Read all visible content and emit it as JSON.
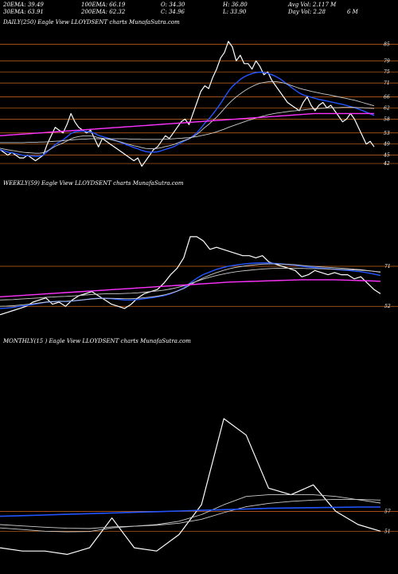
{
  "stats": {
    "row1": {
      "ema20": "20EMA: 39.49",
      "ema100": "100EMA: 66.19",
      "open": "O: 34.30",
      "high": "H: 36.80",
      "avgvol": "Avg Vol: 2.117 M"
    },
    "row2": {
      "ema30": "30EMA: 63.91",
      "ema200": "200EMA: 62.32",
      "close": "C: 34.96",
      "low": "L: 33.90",
      "dayvol": "Day Vol: 2.28",
      "extra": "6  M"
    }
  },
  "colors": {
    "background": "#000000",
    "price": "#ffffff",
    "ema_blue": "#2255ff",
    "ema_magenta": "#ff33ff",
    "ema_gray": "#cccccc",
    "levels": "#d2691e"
  },
  "chart_data": [
    {
      "type": "line",
      "label": "DAILY(250) Eagle  View  LLOYDSENT charts MunafaSutra.com",
      "ylim": [
        40,
        90
      ],
      "y_ticks": [
        85,
        79,
        75,
        71,
        66,
        62,
        58,
        53,
        49,
        45,
        42
      ],
      "level_lines": [
        85,
        79,
        75,
        71,
        66,
        62,
        58,
        53,
        49,
        45,
        42
      ],
      "series": [
        {
          "role": "price",
          "color": "#ffffff",
          "width": 1.2,
          "values": [
            47,
            46,
            45,
            46,
            45,
            44,
            44,
            45,
            44,
            43,
            44,
            45,
            49,
            52,
            55,
            54,
            53,
            56,
            60,
            57,
            55,
            54,
            53,
            54,
            51,
            48,
            51,
            50,
            49,
            48,
            47,
            46,
            45,
            44,
            43,
            44,
            41,
            43,
            45,
            47,
            48,
            50,
            52,
            51,
            53,
            55,
            57,
            58,
            56,
            60,
            64,
            68,
            70,
            69,
            73,
            76,
            80,
            82,
            86,
            84,
            79,
            81,
            78,
            78,
            76,
            79,
            77,
            74,
            75,
            72,
            70,
            68,
            66,
            64,
            63,
            62,
            61,
            64,
            66,
            63,
            61,
            63,
            64,
            62,
            63,
            61,
            59,
            57,
            58,
            60,
            58,
            55,
            52,
            49,
            50,
            48
          ]
        },
        {
          "role": "ema20",
          "color": "#2255ff",
          "width": 1.4,
          "values": [
            47,
            46.6,
            46.1,
            45.9,
            45.6,
            45.2,
            44.9,
            44.8,
            44.7,
            44.6,
            44.6,
            45.1,
            46.2,
            47.5,
            48.8,
            49.7,
            50.5,
            51.6,
            52.8,
            53.4,
            53.6,
            53.7,
            53.5,
            53.3,
            52.9,
            52.1,
            51.7,
            51.3,
            50.9,
            50.4,
            49.9,
            49.4,
            48.8,
            48.3,
            47.7,
            47.3,
            46.7,
            46.3,
            46.1,
            46.1,
            46.2,
            46.6,
            47.1,
            47.5,
            48.0,
            48.7,
            49.5,
            50.3,
            50.9,
            51.9,
            53.1,
            54.7,
            56.5,
            58.0,
            59.7,
            61.6,
            63.6,
            65.8,
            68.0,
            69.8,
            71.0,
            72.3,
            73.2,
            73.9,
            74.4,
            74.8,
            74.9,
            74.8,
            74.5,
            74.0,
            73.4,
            72.6,
            71.6,
            70.5,
            69.4,
            68.4,
            67.4,
            66.7,
            66.3,
            65.9,
            65.5,
            65.1,
            64.8,
            64.5,
            64.2,
            63.9,
            63.6,
            63.3,
            62.9,
            62.5,
            62.1,
            61.6,
            61.1,
            60.5,
            59.9,
            59.3
          ]
        },
        {
          "role": "ema30",
          "color": "#cccccc",
          "width": 0.9,
          "values": [
            47.5,
            47.2,
            46.9,
            46.7,
            46.5,
            46.2,
            46.0,
            45.9,
            45.8,
            45.7,
            45.7,
            45.9,
            46.5,
            47.3,
            48.2,
            48.8,
            49.4,
            50.1,
            50.9,
            51.4,
            51.7,
            51.9,
            51.9,
            51.9,
            51.7,
            51.3,
            51.1,
            50.9,
            50.6,
            50.3,
            50.0,
            49.6,
            49.2,
            48.8,
            48.4,
            48.1,
            47.7,
            47.4,
            47.3,
            47.3,
            47.4,
            47.7,
            48.1,
            48.4,
            48.8,
            49.3,
            49.9,
            50.4,
            50.9,
            51.6,
            52.5,
            53.7,
            55.0,
            56.1,
            57.4,
            58.7,
            60.2,
            61.8,
            63.4,
            64.8,
            66.0,
            67.1,
            68.1,
            69.0,
            69.7,
            70.4,
            70.9,
            71.2,
            71.4,
            71.5,
            71.5,
            71.3,
            71.0,
            70.6,
            70.1,
            69.6,
            69.1,
            68.7,
            68.4,
            68.0,
            67.7,
            67.4,
            67.1,
            66.9,
            66.6,
            66.3,
            66.0,
            65.7,
            65.4,
            65.1,
            64.8,
            64.4,
            64.0,
            63.6,
            63.2,
            62.8
          ]
        },
        {
          "role": "ema100",
          "color": "#cccccc",
          "width": 0.9,
          "values": [
            49.5,
            49.5,
            49.5,
            49.5,
            49.5,
            49.5,
            49.5,
            49.6,
            49.6,
            49.6,
            49.7,
            49.7,
            49.8,
            49.9,
            50.0,
            50.1,
            50.2,
            50.4,
            50.5,
            50.6,
            50.7,
            50.8,
            50.8,
            50.9,
            50.9,
            50.9,
            50.9,
            50.9,
            50.9,
            50.9,
            50.9,
            50.9,
            50.9,
            50.8,
            50.8,
            50.8,
            50.7,
            50.7,
            50.7,
            50.7,
            50.7,
            50.7,
            50.8,
            50.8,
            50.9,
            51.0,
            51.1,
            51.2,
            51.3,
            51.5,
            51.7,
            52.0,
            52.3,
            52.6,
            53.0,
            53.4,
            53.9,
            54.4,
            55.0,
            55.5,
            56.0,
            56.5,
            57.0,
            57.5,
            57.9,
            58.4,
            58.8,
            59.1,
            59.5,
            59.8,
            60.1,
            60.3,
            60.5,
            60.7,
            60.9,
            61.0,
            61.2,
            61.3,
            61.5,
            61.6,
            61.7,
            61.8,
            61.9,
            62.0,
            62.1,
            62.1,
            62.1,
            62.2,
            62.2,
            62.2,
            62.2,
            62.1,
            62.1,
            62.0,
            61.9,
            61.8
          ]
        },
        {
          "role": "ema200",
          "color": "#ff33ff",
          "width": 1.4,
          "values": [
            52.0,
            52.1,
            52.2,
            52.3,
            52.4,
            52.5,
            52.6,
            52.7,
            52.8,
            52.9,
            53.0,
            53.1,
            53.2,
            53.3,
            53.4,
            53.5,
            53.6,
            53.7,
            53.8,
            53.9,
            54.0,
            54.1,
            54.2,
            54.3,
            54.4,
            54.5,
            54.6,
            54.7,
            54.8,
            54.9,
            55.0,
            55.1,
            55.2,
            55.3,
            55.4,
            55.5,
            55.6,
            55.7,
            55.8,
            55.9,
            56.0,
            56.1,
            56.2,
            56.3,
            56.4,
            56.5,
            56.6,
            56.7,
            56.8,
            56.9,
            57.0,
            57.1,
            57.2,
            57.3,
            57.4,
            57.5,
            57.6,
            57.7,
            57.8,
            57.9,
            58.0,
            58.1,
            58.2,
            58.3,
            58.4,
            58.5,
            58.6,
            58.7,
            58.8,
            58.9,
            59.0,
            59.1,
            59.2,
            59.3,
            59.4,
            59.5,
            59.6,
            59.7,
            59.8,
            59.9,
            60.0,
            60.0,
            60.0,
            60.0,
            60.0,
            60.0,
            60.0,
            60.0,
            60.0,
            60.0,
            60.0,
            60.0,
            60.0,
            60.0,
            60.0,
            60.0
          ]
        }
      ]
    },
    {
      "type": "line",
      "label": "WEEKLY(59) Eagle  View  LLOYDSENT charts MunafaSutra.com",
      "ylim": [
        40,
        105
      ],
      "y_ticks": [
        71,
        52
      ],
      "level_lines": [
        71,
        52
      ],
      "series": [
        {
          "role": "price",
          "color": "#ffffff",
          "width": 1.2,
          "values": [
            48,
            49,
            50,
            51,
            52,
            54,
            55,
            56,
            53,
            54,
            52,
            55,
            57,
            58,
            59,
            57,
            55,
            53,
            52,
            51,
            53,
            56,
            58,
            59,
            60,
            63,
            67,
            70,
            75,
            85,
            85,
            83,
            79,
            80,
            79,
            78,
            77,
            76,
            76,
            75,
            76,
            73,
            72,
            71,
            70,
            69,
            66,
            67,
            69,
            68,
            67,
            68,
            67,
            67,
            65,
            66,
            63,
            60,
            58
          ]
        },
        {
          "role": "ema_blue",
          "color": "#2255ff",
          "width": 1.4,
          "values": [
            51,
            51.2,
            51.5,
            52,
            52.4,
            52.9,
            53.4,
            54,
            54.2,
            54.4,
            54.3,
            54.5,
            54.8,
            55.2,
            55.6,
            55.8,
            55.8,
            55.6,
            55.3,
            55,
            55,
            55.2,
            55.6,
            56,
            56.5,
            57.1,
            58,
            59.2,
            60.7,
            63.1,
            65.3,
            67.1,
            68.3,
            69.5,
            70.4,
            71.1,
            71.6,
            72,
            72.3,
            72.5,
            72.6,
            72.5,
            72.3,
            72.1,
            71.8,
            71.5,
            71,
            70.6,
            70.4,
            70.1,
            69.8,
            69.6,
            69.3,
            69.1,
            68.7,
            68.4,
            67.9,
            67.3,
            66.6
          ]
        },
        {
          "role": "ema_gray1",
          "color": "#cccccc",
          "width": 0.9,
          "values": [
            52,
            52.1,
            52.3,
            52.6,
            52.9,
            53.2,
            53.6,
            54,
            54.2,
            54.4,
            54.4,
            54.6,
            54.9,
            55.2,
            55.5,
            55.7,
            55.8,
            55.8,
            55.7,
            55.6,
            55.6,
            55.8,
            56.1,
            56.4,
            56.8,
            57.4,
            58.2,
            59.2,
            60.4,
            62.2,
            64,
            65.5,
            66.8,
            68,
            69,
            69.8,
            70.5,
            71,
            71.4,
            71.7,
            72,
            72.1,
            72.1,
            72,
            71.9,
            71.7,
            71.4,
            71.1,
            70.9,
            70.7,
            70.5,
            70.3,
            70.1,
            69.9,
            69.6,
            69.4,
            69,
            68.6,
            68.1
          ]
        },
        {
          "role": "ema_gray2",
          "color": "#cccccc",
          "width": 0.9,
          "values": [
            55,
            55.1,
            55.2,
            55.4,
            55.6,
            55.8,
            56,
            56.3,
            56.4,
            56.6,
            56.7,
            56.9,
            57.1,
            57.4,
            57.6,
            57.8,
            57.9,
            58,
            58,
            58.1,
            58.2,
            58.4,
            58.7,
            59,
            59.3,
            59.7,
            60.2,
            60.9,
            61.7,
            62.8,
            63.9,
            64.9,
            65.8,
            66.6,
            67.3,
            67.9,
            68.4,
            68.8,
            69.1,
            69.4,
            69.7,
            69.9,
            70,
            70.1,
            70.1,
            70.1,
            70,
            69.9,
            69.9,
            69.8,
            69.7,
            69.6,
            69.5,
            69.4,
            69.3,
            69.1,
            68.9,
            68.6,
            68.3
          ]
        },
        {
          "role": "ema_magenta",
          "color": "#ff33ff",
          "width": 1.4,
          "values": [
            56.5,
            56.7,
            56.9,
            57.1,
            57.3,
            57.5,
            57.7,
            57.9,
            58.1,
            58.3,
            58.5,
            58.7,
            58.9,
            59.1,
            59.3,
            59.5,
            59.7,
            59.9,
            60.1,
            60.3,
            60.5,
            60.7,
            60.9,
            61.1,
            61.3,
            61.5,
            61.7,
            61.9,
            62.1,
            62.3,
            62.5,
            62.7,
            62.9,
            63.1,
            63.3,
            63.5,
            63.6,
            63.7,
            63.8,
            63.9,
            64,
            64.1,
            64.2,
            64.3,
            64.4,
            64.5,
            64.6,
            64.6,
            64.6,
            64.6,
            64.6,
            64.6,
            64.5,
            64.4,
            64.3,
            64.2,
            64.1,
            64,
            63.9
          ]
        }
      ]
    },
    {
      "type": "line",
      "label": "MONTHLY(15                    ) Eagle  View  LLOYDSENT charts MunafaSutra.com",
      "ylim": [
        40,
        105
      ],
      "y_ticks": [
        57,
        51
      ],
      "level_lines": [
        57,
        51
      ],
      "series": [
        {
          "role": "price",
          "color": "#ffffff",
          "width": 1.2,
          "values": [
            46,
            45,
            45,
            44,
            46,
            55,
            46,
            45,
            50,
            59,
            85,
            80,
            64,
            62,
            65,
            57,
            53,
            51
          ]
        },
        {
          "role": "ema_gray1",
          "color": "#cccccc",
          "width": 0.9,
          "values": [
            52,
            51.5,
            51,
            50.8,
            50.9,
            52,
            52.5,
            53,
            54,
            56,
            59,
            61.5,
            62,
            62,
            62,
            61.5,
            60.5,
            59.5
          ]
        },
        {
          "role": "ema_gray2",
          "color": "#cccccc",
          "width": 0.9,
          "values": [
            53,
            52.6,
            52.2,
            51.9,
            51.8,
            52.3,
            52.5,
            52.8,
            53.4,
            54.6,
            56.6,
            58.4,
            59.4,
            60,
            60.4,
            60.6,
            60.6,
            60.4
          ]
        },
        {
          "role": "ema_blue",
          "color": "#2255ff",
          "width": 1.6,
          "values": [
            55.5,
            55.7,
            55.9,
            56.1,
            56.3,
            56.5,
            56.7,
            56.9,
            57.1,
            57.3,
            57.5,
            57.7,
            57.9,
            58,
            58.1,
            58.2,
            58.3,
            58.3
          ]
        }
      ]
    }
  ]
}
